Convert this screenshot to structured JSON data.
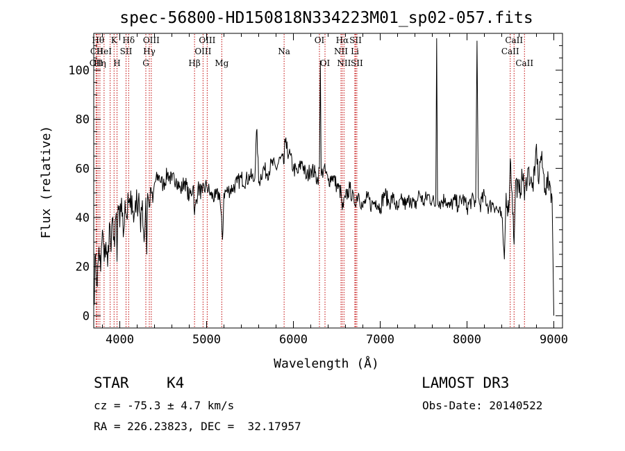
{
  "chart_data": {
    "type": "line",
    "title": "spec-56800-HD150818N334223M01_sp02-057.fits",
    "xlabel": "Wavelength (Å)",
    "ylabel": "Flux (relative)",
    "xlim": [
      3700,
      9100
    ],
    "ylim": [
      -5,
      115
    ],
    "xticks": [
      4000,
      5000,
      6000,
      7000,
      8000,
      9000
    ],
    "yticks": [
      0,
      20,
      40,
      60,
      80,
      100
    ],
    "series": [
      {
        "name": "spectrum",
        "x": [
          3700,
          3720,
          3740,
          3760,
          3780,
          3800,
          3820,
          3840,
          3860,
          3880,
          3900,
          3920,
          3940,
          3960,
          3968,
          3980,
          4000,
          4020,
          4040,
          4060,
          4080,
          4100,
          4120,
          4140,
          4160,
          4180,
          4200,
          4220,
          4240,
          4260,
          4280,
          4300,
          4310,
          4320,
          4340,
          4360,
          4380,
          4400,
          4450,
          4500,
          4550,
          4600,
          4650,
          4700,
          4750,
          4800,
          4850,
          4861,
          4900,
          4950,
          5000,
          5050,
          5100,
          5150,
          5183,
          5200,
          5250,
          5300,
          5350,
          5400,
          5450,
          5500,
          5550,
          5580,
          5600,
          5650,
          5700,
          5750,
          5800,
          5850,
          5893,
          5900,
          5920,
          5950,
          6000,
          6050,
          6100,
          6150,
          6200,
          6250,
          6280,
          6300,
          6310,
          6320,
          6350,
          6400,
          6450,
          6500,
          6550,
          6563,
          6600,
          6650,
          6700,
          6750,
          6800,
          6850,
          6900,
          6950,
          7000,
          7050,
          7100,
          7150,
          7200,
          7250,
          7300,
          7350,
          7400,
          7450,
          7500,
          7550,
          7600,
          7640,
          7650,
          7660,
          7700,
          7750,
          7800,
          7850,
          7900,
          7950,
          8000,
          8050,
          8100,
          8115,
          8130,
          8150,
          8200,
          8250,
          8300,
          8350,
          8400,
          8430,
          8450,
          8480,
          8498,
          8520,
          8542,
          8560,
          8600,
          8650,
          8662,
          8700,
          8750,
          8780,
          8800,
          8820,
          8850,
          8880,
          8900,
          8950,
          8980,
          9000
        ],
        "values": [
          5,
          25,
          12,
          28,
          18,
          35,
          22,
          30,
          20,
          38,
          26,
          40,
          28,
          42,
          22,
          45,
          36,
          48,
          32,
          47,
          40,
          46,
          44,
          49,
          38,
          47,
          45,
          50,
          34,
          47,
          30,
          48,
          25,
          50,
          44,
          52,
          46,
          54,
          57,
          53,
          58,
          55,
          56,
          51,
          55,
          48,
          53,
          41,
          52,
          50,
          53,
          49,
          48,
          50,
          31,
          50,
          51,
          52,
          54,
          56,
          55,
          57,
          55,
          76,
          54,
          60,
          58,
          62,
          60,
          64,
          62,
          72,
          68,
          66,
          60,
          58,
          63,
          56,
          60,
          58,
          55,
          60,
          104,
          57,
          60,
          55,
          57,
          53,
          50,
          43,
          48,
          52,
          46,
          50,
          44,
          48,
          45,
          47,
          44,
          50,
          46,
          48,
          43,
          47,
          45,
          48,
          44,
          50,
          46,
          49,
          47,
          45,
          113,
          48,
          46,
          48,
          44,
          47,
          45,
          48,
          44,
          47,
          46,
          112,
          48,
          45,
          49,
          44,
          46,
          43,
          40,
          23,
          50,
          42,
          64,
          50,
          29,
          55,
          50,
          58,
          47,
          60,
          52,
          57,
          70,
          55,
          65,
          58,
          52,
          55,
          48,
          0
        ]
      }
    ],
    "spectral_lines": [
      {
        "wavelength": 3727,
        "label": "OII",
        "row": 2
      },
      {
        "wavelength": 3734,
        "label": "CII",
        "row": 1
      },
      {
        "wavelength": 3750,
        "label": "Hθ",
        "row": 0
      },
      {
        "wavelength": 3771,
        "label": "Hη",
        "row": 2
      },
      {
        "wavelength": 3819,
        "label": "HeI",
        "row": 1
      },
      {
        "wavelength": 3889,
        "label": "",
        "row": 0
      },
      {
        "wavelength": 3934,
        "label": "K",
        "row": 0
      },
      {
        "wavelength": 3968,
        "label": "H",
        "row": 2
      },
      {
        "wavelength": 4072,
        "label": "SII",
        "row": 1
      },
      {
        "wavelength": 4102,
        "label": "Hδ",
        "row": 0
      },
      {
        "wavelength": 4300,
        "label": "G",
        "row": 2
      },
      {
        "wavelength": 4340,
        "label": "Hγ",
        "row": 1
      },
      {
        "wavelength": 4363,
        "label": "OIII",
        "row": 0
      },
      {
        "wavelength": 4861,
        "label": "Hβ",
        "row": 2
      },
      {
        "wavelength": 4959,
        "label": "OIII",
        "row": 1
      },
      {
        "wavelength": 5007,
        "label": "OIII",
        "row": 0
      },
      {
        "wavelength": 5175,
        "label": "Mg",
        "row": 2
      },
      {
        "wavelength": 5893,
        "label": "Na",
        "row": 1
      },
      {
        "wavelength": 6300,
        "label": "OI",
        "row": 0
      },
      {
        "wavelength": 6364,
        "label": "OI",
        "row": 2
      },
      {
        "wavelength": 6548,
        "label": "NII",
        "row": 1
      },
      {
        "wavelength": 6563,
        "label": "Hα",
        "row": 0
      },
      {
        "wavelength": 6583,
        "label": "NII",
        "row": 2
      },
      {
        "wavelength": 6708,
        "label": "Li",
        "row": 1
      },
      {
        "wavelength": 6716,
        "label": "SII",
        "row": 0
      },
      {
        "wavelength": 6731,
        "label": "SII",
        "row": 2
      },
      {
        "wavelength": 8498,
        "label": "CaII",
        "row": 1
      },
      {
        "wavelength": 8542,
        "label": "CaII",
        "row": 0
      },
      {
        "wavelength": 8662,
        "label": "CaII",
        "row": 2
      }
    ]
  },
  "info": {
    "object_class": "STAR",
    "subclass": "K4",
    "survey": "LAMOST DR3",
    "cz": "cz = -75.3 ± 4.7 km/s",
    "obs_date": "Obs-Date: 20140522",
    "coords": "RA = 226.23823, DEC =  32.17957"
  },
  "colors": {
    "line_markers": "#c00000",
    "spectrum": "#000000"
  }
}
